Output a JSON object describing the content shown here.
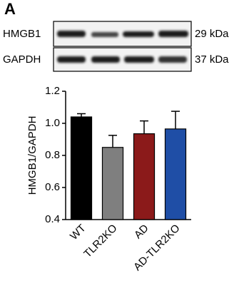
{
  "blot": {
    "panel_label": "A",
    "rows": [
      {
        "label": "HMGB1",
        "size": "29 kDa"
      },
      {
        "label": "GAPDH",
        "size": "37 kDa"
      }
    ]
  },
  "chart_data": {
    "type": "bar",
    "y_label": "HMGB1/GAPDH",
    "categories": [
      "WT",
      "TLR2KO",
      "AD",
      "AD-TLR2KO"
    ],
    "values": [
      1.04,
      0.85,
      0.935,
      0.965
    ],
    "errors": [
      0.02,
      0.075,
      0.08,
      0.11
    ],
    "colors": [
      "#000000",
      "#7f7f7f",
      "#8b1a1a",
      "#1f4ea6"
    ],
    "ylim": [
      0.4,
      1.2
    ],
    "yticks": [
      0.4,
      0.6,
      0.8,
      {
        "value": 1,
        "label": "1.0"
      },
      1.2
    ]
  }
}
